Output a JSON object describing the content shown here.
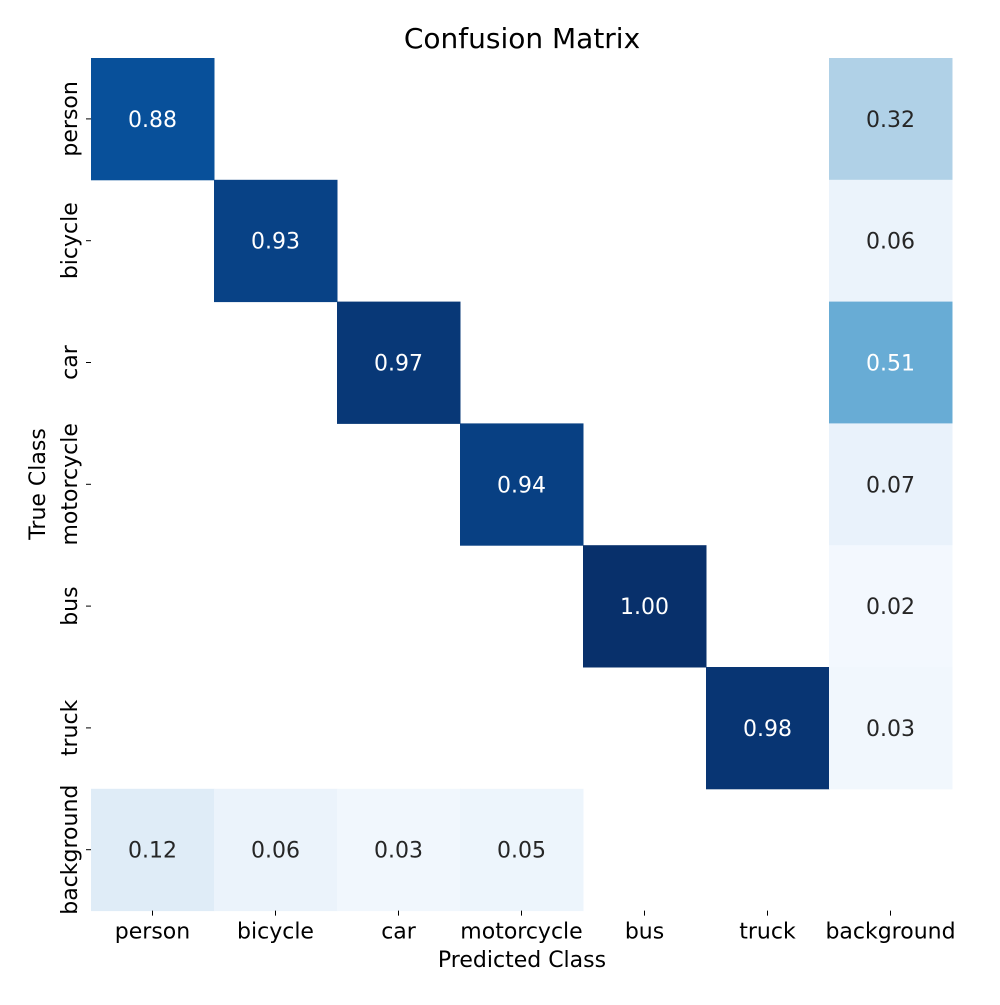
{
  "chart_data": {
    "type": "heatmap",
    "title": "Confusion Matrix",
    "xlabel": "Predicted Class",
    "ylabel": "True Class",
    "x_categories": [
      "person",
      "bicycle",
      "car",
      "motorcycle",
      "bus",
      "truck",
      "background"
    ],
    "y_categories": [
      "person",
      "bicycle",
      "car",
      "motorcycle",
      "bus",
      "truck",
      "background"
    ],
    "values": [
      [
        0.88,
        null,
        null,
        null,
        null,
        null,
        0.32
      ],
      [
        null,
        0.93,
        null,
        null,
        null,
        null,
        0.06
      ],
      [
        null,
        null,
        0.97,
        null,
        null,
        null,
        0.51
      ],
      [
        null,
        null,
        null,
        0.94,
        null,
        null,
        0.07
      ],
      [
        null,
        null,
        null,
        null,
        1.0,
        null,
        0.02
      ],
      [
        null,
        null,
        null,
        null,
        null,
        0.98,
        0.03
      ],
      [
        0.12,
        0.06,
        0.03,
        0.05,
        null,
        null,
        null
      ]
    ],
    "value_format": "0.00",
    "color_scale": "Blues",
    "vmin": 0,
    "vmax": 1,
    "colorbar": false,
    "grid": false
  }
}
